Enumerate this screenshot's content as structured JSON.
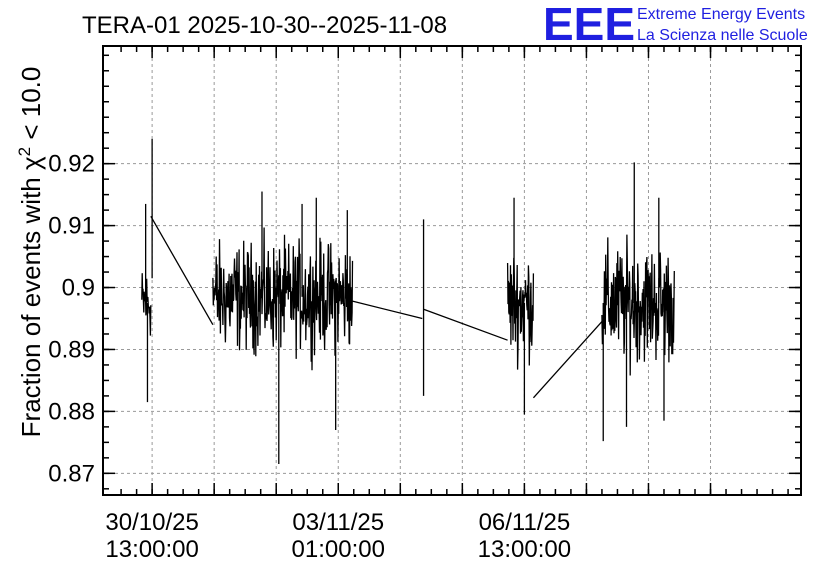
{
  "chart_data": {
    "type": "line",
    "title": "TERA-01 2025-10-30--2025-11-08",
    "ylabel_prefix": "Fraction of events with ",
    "ylabel_symbol": "χ",
    "ylabel_sup": "2",
    "ylabel_suffix": " < 10.0",
    "x_unit": "hours since 2025-10-30 00:00",
    "xlim": [
      -6,
      264
    ],
    "ylim": [
      0.8665,
      0.939
    ],
    "yticks": [
      0.87,
      0.88,
      0.89,
      0.9,
      0.91,
      0.92
    ],
    "ytick_labels": [
      "0.87",
      "0.88",
      "0.89",
      "0.9",
      "0.91",
      "0.92"
    ],
    "xticks_major": [
      13,
      85,
      157
    ],
    "xtick_labels": [
      {
        "date": "30/10/25",
        "time": "13:00:00"
      },
      {
        "date": "03/11/25",
        "time": "01:00:00"
      },
      {
        "date": "06/11/25",
        "time": "13:00:00"
      }
    ],
    "xticks_minor": [
      37,
      61,
      109,
      133,
      181,
      205,
      229
    ],
    "grid": true,
    "series": [
      {
        "segments": [
          {
            "t0": 9,
            "t1": 12.5,
            "center": 0.8975,
            "amp": 0.0085,
            "spikes": [
              [
                10.5,
                0.9135
              ],
              [
                11.2,
                0.8815
              ]
            ]
          },
          {
            "t0": 36.5,
            "t1": 90.5,
            "center": 0.8985,
            "amp": 0.0125,
            "spikes": [
              [
                55.5,
                0.9155
              ],
              [
                62,
                0.8715
              ],
              [
                71,
                0.9135
              ],
              [
                76.5,
                0.9145
              ],
              [
                84,
                0.877
              ],
              [
                88.5,
                0.9125
              ]
            ]
          },
          {
            "t0": 150.5,
            "t1": 160.5,
            "center": 0.8975,
            "amp": 0.0125,
            "spikes": [
              [
                153,
                0.9145
              ],
              [
                157,
                0.8795
              ]
            ]
          },
          {
            "t0": 187,
            "t1": 215,
            "center": 0.8975,
            "amp": 0.0135,
            "spikes": [
              [
                187.5,
                0.8752
              ],
              [
                196.5,
                0.8775
              ],
              [
                199.5,
                0.9202
              ],
              [
                209,
                0.9145
              ],
              [
                211,
                0.8785
              ]
            ]
          }
        ],
        "spike_lines": [
          {
            "t": 13,
            "y0": 0.9015,
            "y1": 0.924
          },
          {
            "t": 118,
            "y0": 0.8825,
            "y1": 0.911
          }
        ],
        "connectors": [
          [
            [
              12.5,
              0.9115
            ],
            [
              36.5,
              0.894
            ]
          ],
          [
            [
              90.5,
              0.8978
            ],
            [
              117.5,
              0.895
            ]
          ],
          [
            [
              118,
              0.8965
            ],
            [
              150.5,
              0.8915
            ]
          ],
          [
            [
              160.5,
              0.8822
            ],
            [
              187,
              0.8945
            ]
          ]
        ]
      }
    ]
  },
  "logo": {
    "mark": "EEE",
    "line1": "Extreme Energy Events",
    "line2": "La Scienza nelle Scuole"
  }
}
